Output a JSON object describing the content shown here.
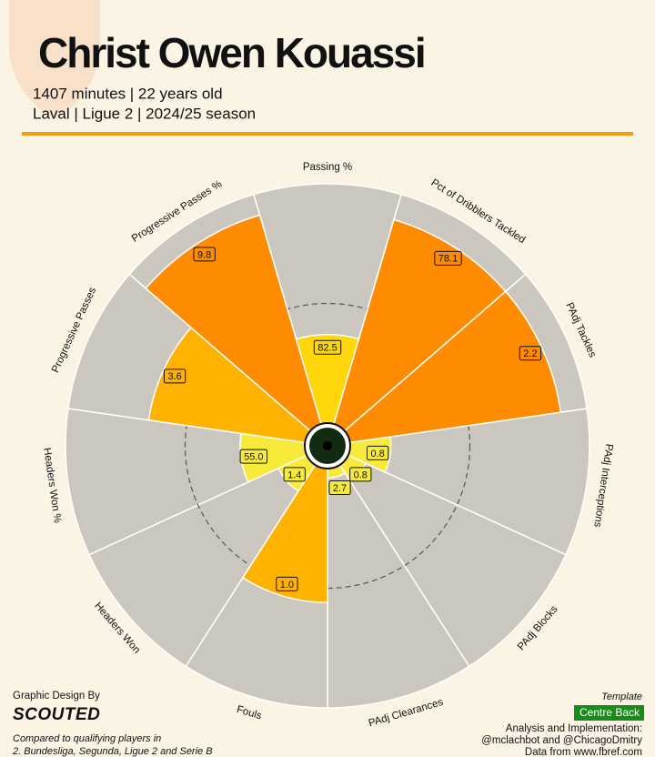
{
  "chart_data": {
    "type": "pizza",
    "title": "Christ Owen Kouassi",
    "subtitle": [
      "1407 minutes | 22 years old",
      "Laval | Ligue 2 | 2024/25 season"
    ],
    "categories": [
      "Passing %",
      "Pct of Dribblers Tackled",
      "PAdj Tackles",
      "PAdj Interceptions",
      "PAdj Blocks",
      "PAdj Clearances",
      "Fouls",
      "Headers Won",
      "Headers Won %",
      "Progressive Passes",
      "Progressive Passes %"
    ],
    "values": [
      82.5,
      78.1,
      2.2,
      0.8,
      0.8,
      2.7,
      1.0,
      1.4,
      55.0,
      3.6,
      9.8
    ],
    "value_labels": [
      "82.5",
      "78.1",
      "2.2",
      "0.8",
      "0.8",
      "2.7",
      "1.0",
      "1.4",
      "55.0",
      "3.6",
      "9.8"
    ],
    "percentiles": [
      37,
      89,
      89,
      17,
      8,
      4,
      56,
      13,
      27,
      66,
      91
    ],
    "colors": [
      "#ffd60a",
      "#ff8c00",
      "#ff8c00",
      "#f7ea3a",
      "#f7ea3a",
      "#f7ea3a",
      "#ffb300",
      "#f7ea3a",
      "#f7ea3a",
      "#ffb300",
      "#ff8c00"
    ],
    "credits": {
      "design_label": "Graphic Design By",
      "design_brand": "SCOUTED",
      "comparison": [
        "Compared to qualifying players in",
        "2. Bundesliga, Segunda, Ligue 2 and Serie B"
      ],
      "template_label": "Template",
      "template": "Centre Back",
      "analysis": [
        "Analysis and Implementation:",
        "@mclachbot and @ChicagoDmitry",
        "Data from www.fbref.com"
      ]
    }
  }
}
